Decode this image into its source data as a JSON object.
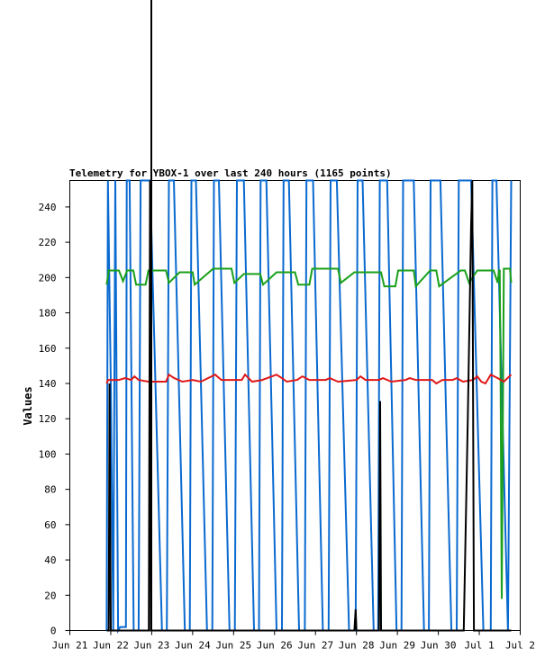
{
  "chart_data": {
    "type": "line",
    "title": "Telemetry for YBOX-1 over last 240 hours (1165 points)",
    "ylabel": "Values",
    "xlabel": "",
    "x_ticks": [
      "Jun 21",
      "Jun 22",
      "Jun 23",
      "Jun 24",
      "Jun 25",
      "Jun 26",
      "Jun 27",
      "Jun 28",
      "Jun 29",
      "Jun 30",
      "Jul 1",
      "Jul 2"
    ],
    "xlim": [
      "Jun 21",
      "Jul 2"
    ],
    "y_ticks": [
      0,
      20,
      40,
      60,
      80,
      100,
      120,
      140,
      160,
      180,
      200,
      220,
      240
    ],
    "ylim": [
      0,
      255
    ],
    "grid": false,
    "series": [
      {
        "color": "#0a6ad0",
        "values": [
          [
            0.9,
            0
          ],
          [
            0.93,
            255
          ],
          [
            1.0,
            140
          ],
          [
            1.06,
            0
          ],
          [
            1.11,
            255
          ],
          [
            1.18,
            0
          ],
          [
            1.23,
            2
          ],
          [
            1.37,
            2
          ],
          [
            1.39,
            255
          ],
          [
            1.46,
            255
          ],
          [
            1.56,
            0
          ],
          [
            1.68,
            0
          ],
          [
            1.73,
            255
          ],
          [
            1.96,
            255
          ],
          [
            2.25,
            0
          ],
          [
            2.37,
            0
          ],
          [
            2.42,
            255
          ],
          [
            2.54,
            255
          ],
          [
            2.81,
            0
          ],
          [
            2.93,
            0
          ],
          [
            2.97,
            255
          ],
          [
            3.08,
            255
          ],
          [
            3.35,
            0
          ],
          [
            3.48,
            0
          ],
          [
            3.52,
            255
          ],
          [
            3.64,
            255
          ],
          [
            3.9,
            0
          ],
          [
            4.03,
            0
          ],
          [
            4.08,
            255
          ],
          [
            4.25,
            255
          ],
          [
            4.5,
            0
          ],
          [
            4.62,
            0
          ],
          [
            4.66,
            255
          ],
          [
            4.8,
            255
          ],
          [
            5.05,
            0
          ],
          [
            5.18,
            0
          ],
          [
            5.22,
            255
          ],
          [
            5.35,
            255
          ],
          [
            5.6,
            0
          ],
          [
            5.74,
            0
          ],
          [
            5.78,
            255
          ],
          [
            5.94,
            255
          ],
          [
            6.18,
            0
          ],
          [
            6.32,
            0
          ],
          [
            6.37,
            255
          ],
          [
            6.52,
            255
          ],
          [
            6.82,
            0
          ],
          [
            6.98,
            0
          ],
          [
            7.03,
            255
          ],
          [
            7.15,
            255
          ],
          [
            7.42,
            0
          ],
          [
            7.53,
            0
          ],
          [
            7.57,
            255
          ],
          [
            7.75,
            255
          ],
          [
            7.98,
            0
          ],
          [
            8.1,
            0
          ],
          [
            8.14,
            255
          ],
          [
            8.4,
            255
          ],
          [
            8.65,
            0
          ],
          [
            8.77,
            0
          ],
          [
            8.81,
            255
          ],
          [
            9.05,
            255
          ],
          [
            9.32,
            0
          ],
          [
            9.45,
            0
          ],
          [
            9.5,
            255
          ],
          [
            9.8,
            255
          ],
          [
            10.1,
            0
          ],
          [
            10.28,
            0
          ],
          [
            10.32,
            255
          ],
          [
            10.42,
            255
          ],
          [
            10.7,
            0
          ],
          [
            10.78,
            255
          ]
        ]
      },
      {
        "color": "#1aa01a",
        "values": [
          [
            0.9,
            196
          ],
          [
            0.95,
            204
          ],
          [
            1.2,
            204
          ],
          [
            1.3,
            198
          ],
          [
            1.4,
            204
          ],
          [
            1.55,
            204
          ],
          [
            1.62,
            196
          ],
          [
            1.85,
            196
          ],
          [
            1.92,
            204
          ],
          [
            2.35,
            204
          ],
          [
            2.42,
            197
          ],
          [
            2.68,
            203
          ],
          [
            3.0,
            203
          ],
          [
            3.05,
            196
          ],
          [
            3.35,
            202
          ],
          [
            3.5,
            205
          ],
          [
            3.95,
            205
          ],
          [
            4.02,
            197
          ],
          [
            4.25,
            202
          ],
          [
            4.65,
            202
          ],
          [
            4.72,
            196
          ],
          [
            5.05,
            203
          ],
          [
            5.5,
            203
          ],
          [
            5.58,
            196
          ],
          [
            5.85,
            196
          ],
          [
            5.92,
            205
          ],
          [
            6.55,
            205
          ],
          [
            6.62,
            197
          ],
          [
            6.95,
            203
          ],
          [
            7.6,
            203
          ],
          [
            7.68,
            195
          ],
          [
            7.95,
            195
          ],
          [
            8.02,
            204
          ],
          [
            8.4,
            204
          ],
          [
            8.45,
            195
          ],
          [
            8.8,
            204
          ],
          [
            8.95,
            204
          ],
          [
            9.02,
            195
          ],
          [
            9.55,
            204
          ],
          [
            9.65,
            204
          ],
          [
            9.75,
            197
          ],
          [
            9.95,
            204
          ],
          [
            10.35,
            204
          ],
          [
            10.45,
            197
          ],
          [
            10.48,
            204
          ],
          [
            10.5,
            204
          ],
          [
            10.52,
            140
          ],
          [
            10.55,
            18
          ],
          [
            10.6,
            205
          ],
          [
            10.75,
            205
          ],
          [
            10.78,
            197
          ]
        ]
      },
      {
        "color": "#e01818",
        "values": [
          [
            0.9,
            140
          ],
          [
            0.93,
            142
          ],
          [
            1.2,
            142
          ],
          [
            1.35,
            143
          ],
          [
            1.5,
            142
          ],
          [
            1.58,
            144
          ],
          [
            1.68,
            142
          ],
          [
            1.92,
            141
          ],
          [
            2.35,
            141
          ],
          [
            2.42,
            145
          ],
          [
            2.55,
            143
          ],
          [
            2.75,
            141
          ],
          [
            3.0,
            142
          ],
          [
            3.2,
            141
          ],
          [
            3.55,
            145
          ],
          [
            3.7,
            142
          ],
          [
            4.2,
            142
          ],
          [
            4.28,
            145
          ],
          [
            4.45,
            141
          ],
          [
            4.7,
            142
          ],
          [
            5.05,
            145
          ],
          [
            5.18,
            143
          ],
          [
            5.3,
            141
          ],
          [
            5.55,
            142
          ],
          [
            5.68,
            144
          ],
          [
            5.85,
            142
          ],
          [
            6.25,
            142
          ],
          [
            6.35,
            143
          ],
          [
            6.55,
            141
          ],
          [
            7.0,
            142
          ],
          [
            7.1,
            144
          ],
          [
            7.22,
            142
          ],
          [
            7.55,
            142
          ],
          [
            7.65,
            143
          ],
          [
            7.85,
            141
          ],
          [
            8.2,
            142
          ],
          [
            8.3,
            143
          ],
          [
            8.45,
            142
          ],
          [
            8.85,
            142
          ],
          [
            8.95,
            140
          ],
          [
            9.1,
            142
          ],
          [
            9.35,
            142
          ],
          [
            9.45,
            143
          ],
          [
            9.6,
            141
          ],
          [
            9.85,
            142
          ],
          [
            9.95,
            144
          ],
          [
            10.05,
            141
          ],
          [
            10.15,
            140
          ],
          [
            10.28,
            145
          ],
          [
            10.45,
            143
          ],
          [
            10.6,
            141
          ],
          [
            10.78,
            145
          ]
        ]
      },
      {
        "color": "#000000",
        "values": [
          [
            0.9,
            0
          ],
          [
            0.95,
            0
          ],
          [
            0.97,
            140
          ],
          [
            1.0,
            0
          ],
          [
            1.93,
            0
          ],
          [
            1.96,
            255
          ],
          [
            1.98,
            0
          ],
          [
            6.95,
            0
          ],
          [
            6.98,
            12
          ],
          [
            7.0,
            0
          ],
          [
            7.55,
            0
          ],
          [
            7.58,
            130
          ],
          [
            7.6,
            0
          ],
          [
            9.55,
            0
          ],
          [
            9.62,
            0
          ],
          [
            9.72,
            120
          ],
          [
            9.8,
            230
          ],
          [
            9.83,
            255
          ],
          [
            9.87,
            0
          ],
          [
            10.78,
            0
          ]
        ]
      }
    ]
  }
}
